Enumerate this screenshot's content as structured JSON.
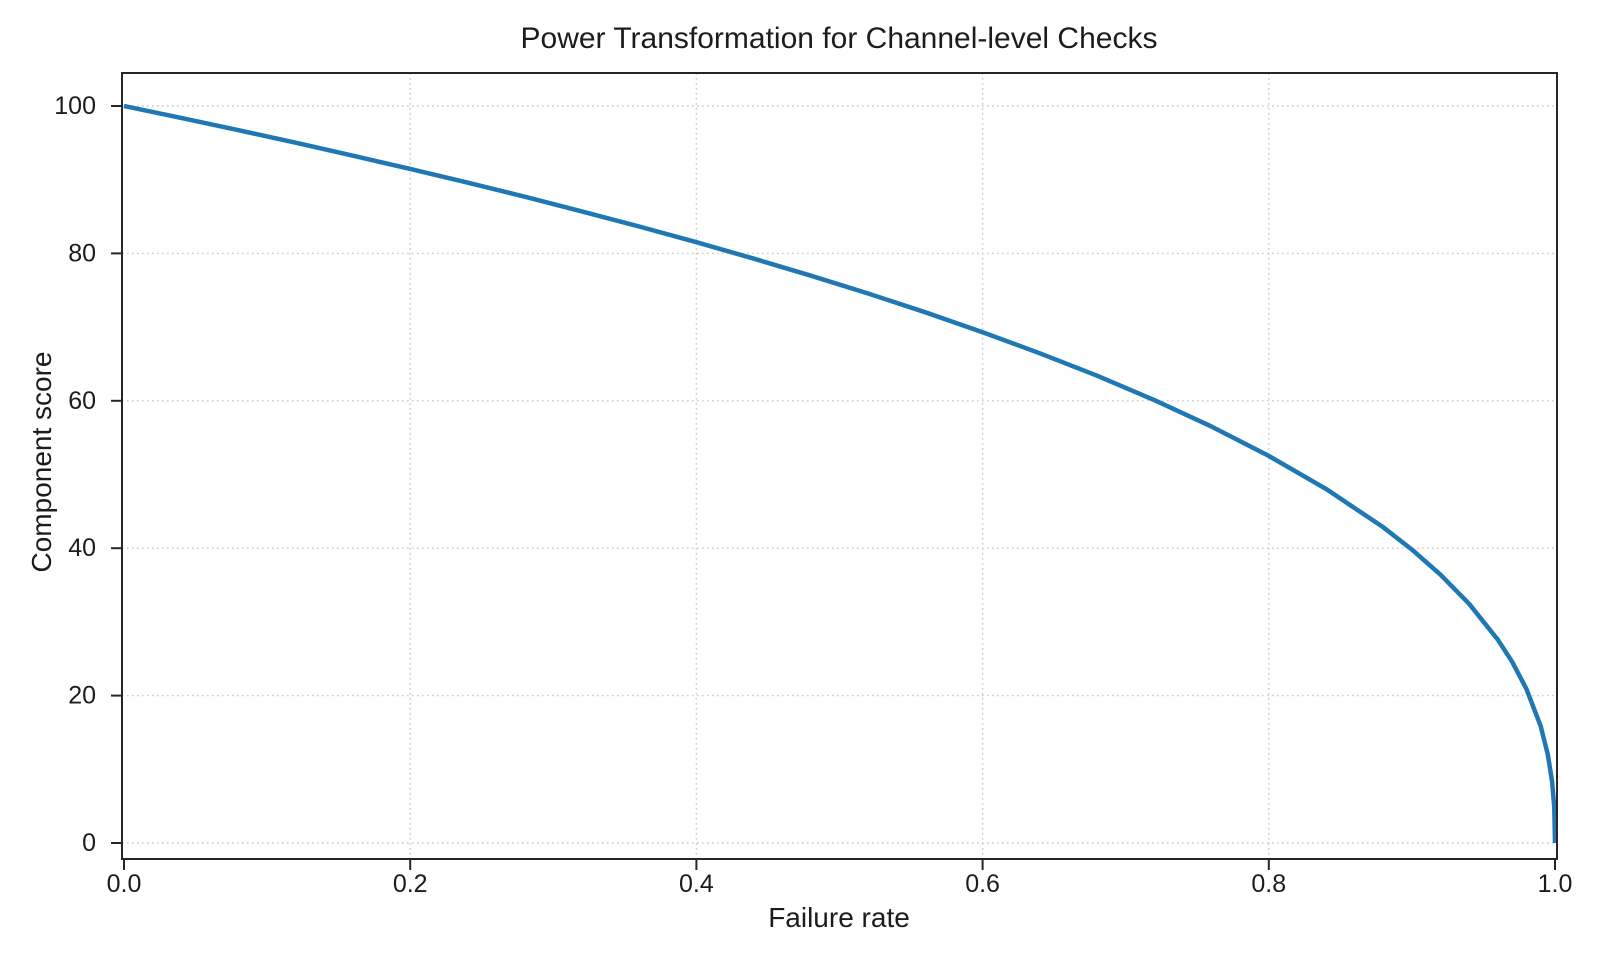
{
  "chart_data": {
    "type": "line",
    "title": "Power Transformation for Channel-level Checks",
    "xlabel": "Failure rate",
    "ylabel": "Component score",
    "xlim": [
      0.0,
      1.0
    ],
    "ylim": [
      0,
      100
    ],
    "grid": "dotted",
    "grid_color": "#c9c9c9",
    "spine_color": "#262626",
    "text_color": "#1c1c1c",
    "background_color": "#ffffff",
    "legend": "none",
    "x_ticks": [
      0.0,
      0.2,
      0.4,
      0.6,
      0.8,
      1.0
    ],
    "x_tick_labels": [
      "0.0",
      "0.2",
      "0.4",
      "0.6",
      "0.8",
      "1.0"
    ],
    "y_ticks": [
      0,
      20,
      40,
      60,
      80,
      100
    ],
    "y_tick_labels": [
      "0",
      "20",
      "40",
      "60",
      "80",
      "100"
    ],
    "series": [
      {
        "name": "component-score-curve",
        "color": "#1f77b4",
        "line_width": 4.5,
        "formula": "score = 100 * (1 - failure_rate)^0.4",
        "points": [
          [
            0.0,
            100.0
          ],
          [
            0.04,
            98.38
          ],
          [
            0.08,
            96.72
          ],
          [
            0.12,
            95.02
          ],
          [
            0.16,
            93.26
          ],
          [
            0.2,
            91.46
          ],
          [
            0.24,
            89.6
          ],
          [
            0.28,
            87.69
          ],
          [
            0.32,
            85.7
          ],
          [
            0.36,
            83.65
          ],
          [
            0.4,
            81.52
          ],
          [
            0.44,
            79.3
          ],
          [
            0.48,
            76.98
          ],
          [
            0.52,
            74.56
          ],
          [
            0.56,
            72.01
          ],
          [
            0.6,
            69.31
          ],
          [
            0.64,
            66.45
          ],
          [
            0.68,
            63.4
          ],
          [
            0.72,
            60.1
          ],
          [
            0.76,
            56.5
          ],
          [
            0.8,
            52.53
          ],
          [
            0.84,
            48.04
          ],
          [
            0.88,
            42.83
          ],
          [
            0.9,
            39.81
          ],
          [
            0.92,
            36.41
          ],
          [
            0.94,
            32.45
          ],
          [
            0.96,
            27.59
          ],
          [
            0.97,
            24.6
          ],
          [
            0.98,
            20.91
          ],
          [
            0.99,
            15.85
          ],
          [
            0.995,
            12.01
          ],
          [
            0.998,
            8.33
          ],
          [
            0.9995,
            4.78
          ],
          [
            1.0,
            0.0
          ]
        ]
      }
    ]
  }
}
